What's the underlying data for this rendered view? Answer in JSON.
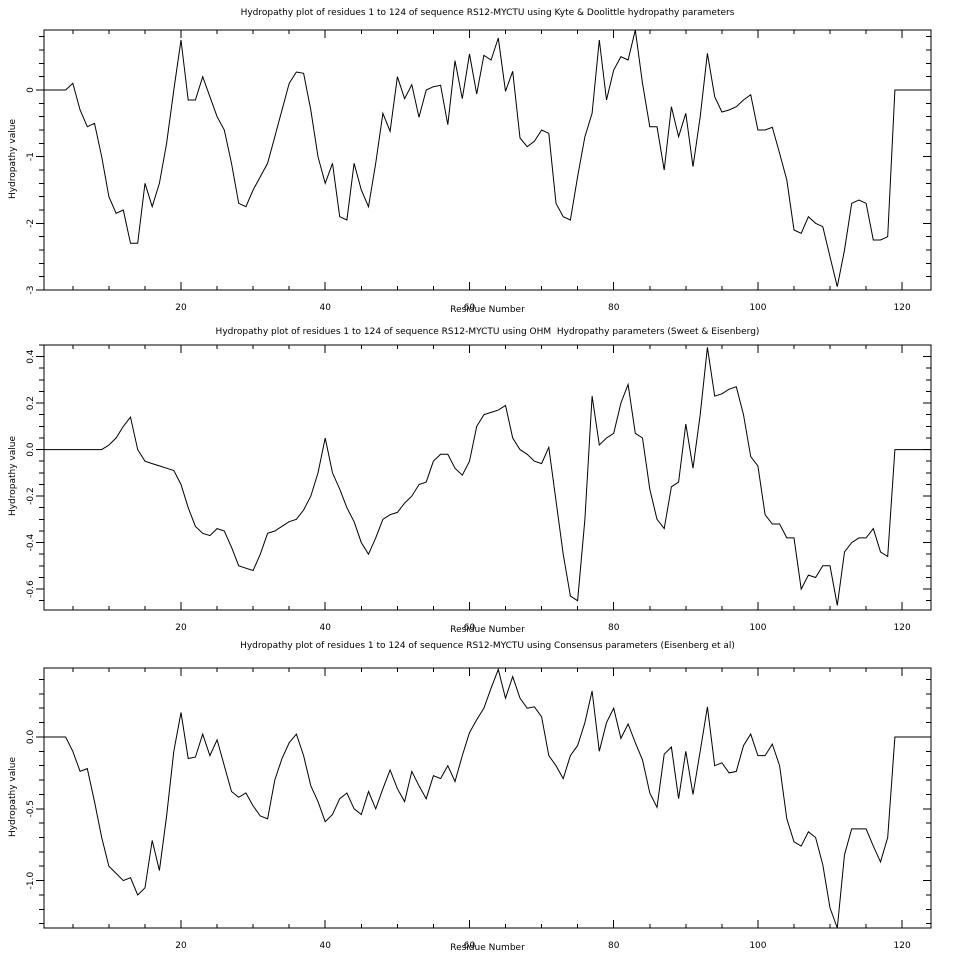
{
  "figure": {
    "background": "#ffffff",
    "line_color": "#000000",
    "text_color": "#000000"
  },
  "chart_data": [
    {
      "type": "line",
      "title": "Hydropathy plot of residues 1 to 124 of sequence RS12-MYCTU using Kyte & Doolittle hydropathy parameters",
      "xlabel": "Residue Number",
      "ylabel": "Hydropathy value",
      "xlim": [
        1,
        124
      ],
      "ylim": [
        -3.0,
        0.9
      ],
      "grid": false,
      "legend": null,
      "xticks_major": [
        20,
        40,
        60,
        80,
        100,
        120
      ],
      "xtick_labels": [
        "20",
        "40",
        "60",
        "80",
        "100",
        "120"
      ],
      "xtick_minor_step": 5,
      "yticks_major": [
        0,
        -1,
        -2,
        -3
      ],
      "ytick_labels": [
        "0",
        "-1",
        "-2",
        "-3"
      ],
      "ytick_minor_step": 0.2,
      "x_start": 1,
      "values": [
        0,
        0,
        0,
        0,
        0.1,
        -0.3,
        -0.55,
        -0.5,
        -1.0,
        -1.6,
        -1.85,
        -1.8,
        -2.3,
        -2.3,
        -1.4,
        -1.75,
        -1.4,
        -0.8,
        0.0,
        0.75,
        -0.15,
        -0.15,
        0.2,
        -0.1,
        -0.4,
        -0.6,
        -1.1,
        -1.7,
        -1.75,
        -1.5,
        -1.3,
        -1.1,
        -0.7,
        -0.3,
        0.1,
        0.27,
        0.25,
        -0.3,
        -1.0,
        -1.4,
        -1.1,
        -1.9,
        -1.95,
        -1.1,
        -1.5,
        -1.75,
        -1.1,
        -0.35,
        -0.62,
        0.2,
        -0.13,
        0.08,
        -0.41,
        0.0,
        0.05,
        0.07,
        -0.52,
        0.44,
        -0.13,
        0.54,
        -0.06,
        0.52,
        0.45,
        0.78,
        -0.02,
        0.28,
        -0.72,
        -0.85,
        -0.77,
        -0.6,
        -0.65,
        -1.7,
        -1.9,
        -1.95,
        -1.3,
        -0.7,
        -0.35,
        0.75,
        -0.15,
        0.3,
        0.5,
        0.45,
        0.9,
        0.1,
        -0.55,
        -0.55,
        -1.2,
        -0.25,
        -0.7,
        -0.35,
        -1.15,
        -0.4,
        0.55,
        -0.1,
        -0.33,
        -0.3,
        -0.25,
        -0.15,
        -0.07,
        -0.6,
        -0.6,
        -0.56,
        -0.95,
        -1.35,
        -2.1,
        -2.15,
        -1.9,
        -2.0,
        -2.05,
        -2.5,
        -2.95,
        -2.4,
        -1.7,
        -1.65,
        -1.7,
        -2.25,
        -2.25,
        -2.2,
        0,
        0,
        0,
        0,
        0,
        0
      ]
    },
    {
      "type": "line",
      "title": "Hydropathy plot of residues 1 to 124 of sequence RS12-MYCTU using OHM  Hydropathy parameters (Sweet & Eisenberg)",
      "xlabel": "Residue Number",
      "ylabel": "Hydropathy value",
      "xlim": [
        1,
        124
      ],
      "ylim": [
        -0.69,
        0.45
      ],
      "grid": false,
      "legend": null,
      "xticks_major": [
        20,
        40,
        60,
        80,
        100,
        120
      ],
      "xtick_labels": [
        "20",
        "40",
        "60",
        "80",
        "100",
        "120"
      ],
      "xtick_minor_step": 5,
      "yticks_major": [
        0.4,
        0.2,
        0.0,
        -0.2,
        -0.4,
        -0.6
      ],
      "ytick_labels": [
        "0.4",
        "0.2",
        "0.0",
        "-0.2",
        "-0.4",
        "-0.6"
      ],
      "ytick_minor_step": 0.05,
      "x_start": 1,
      "values": [
        0,
        0,
        0,
        0,
        0,
        0,
        0,
        0,
        0,
        0.02,
        0.05,
        0.1,
        0.14,
        0.0,
        -0.05,
        -0.06,
        -0.07,
        -0.08,
        -0.09,
        -0.15,
        -0.25,
        -0.33,
        -0.36,
        -0.37,
        -0.34,
        -0.35,
        -0.42,
        -0.5,
        -0.51,
        -0.52,
        -0.45,
        -0.36,
        -0.35,
        -0.33,
        -0.31,
        -0.3,
        -0.26,
        -0.2,
        -0.1,
        0.05,
        -0.1,
        -0.17,
        -0.25,
        -0.31,
        -0.4,
        -0.45,
        -0.38,
        -0.3,
        -0.28,
        -0.27,
        -0.23,
        -0.2,
        -0.15,
        -0.14,
        -0.05,
        -0.02,
        -0.02,
        -0.08,
        -0.11,
        -0.05,
        0.1,
        0.15,
        0.16,
        0.17,
        0.19,
        0.05,
        0.0,
        -0.02,
        -0.05,
        -0.06,
        0.01,
        -0.22,
        -0.45,
        -0.63,
        -0.65,
        -0.3,
        0.23,
        0.02,
        0.05,
        0.07,
        0.2,
        0.28,
        0.07,
        0.05,
        -0.17,
        -0.3,
        -0.34,
        -0.16,
        -0.14,
        0.11,
        -0.08,
        0.15,
        0.44,
        0.23,
        0.24,
        0.26,
        0.27,
        0.15,
        -0.03,
        -0.07,
        -0.28,
        -0.32,
        -0.32,
        -0.38,
        -0.38,
        -0.6,
        -0.54,
        -0.55,
        -0.5,
        -0.5,
        -0.67,
        -0.44,
        -0.4,
        -0.38,
        -0.38,
        -0.34,
        -0.44,
        -0.46,
        0,
        0,
        0,
        0,
        0,
        0
      ]
    },
    {
      "type": "line",
      "title": "Hydropathy plot of residues 1 to 124 of sequence RS12-MYCTU using Consensus parameters (Eisenberg et al)",
      "xlabel": "Residue Number",
      "ylabel": "Hydropathy value",
      "xlim": [
        1,
        124
      ],
      "ylim": [
        -1.33,
        0.48
      ],
      "grid": false,
      "legend": null,
      "xticks_major": [
        20,
        40,
        60,
        80,
        100,
        120
      ],
      "xtick_labels": [
        "20",
        "40",
        "60",
        "80",
        "100",
        "120"
      ],
      "xtick_minor_step": 5,
      "yticks_major": [
        0.0,
        -0.5,
        -1.0
      ],
      "ytick_labels": [
        "0.0",
        "-0.5",
        "-1.0"
      ],
      "ytick_minor_step": 0.1,
      "x_start": 1,
      "values": [
        0,
        0,
        0,
        0,
        -0.1,
        -0.24,
        -0.22,
        -0.45,
        -0.7,
        -0.9,
        -0.95,
        -1.0,
        -0.98,
        -1.1,
        -1.05,
        -0.72,
        -0.93,
        -0.55,
        -0.1,
        0.17,
        -0.15,
        -0.14,
        0.02,
        -0.13,
        -0.02,
        -0.2,
        -0.38,
        -0.42,
        -0.39,
        -0.48,
        -0.55,
        -0.57,
        -0.3,
        -0.15,
        -0.04,
        0.02,
        -0.13,
        -0.34,
        -0.45,
        -0.59,
        -0.54,
        -0.43,
        -0.39,
        -0.5,
        -0.54,
        -0.38,
        -0.5,
        -0.36,
        -0.23,
        -0.36,
        -0.45,
        -0.24,
        -0.34,
        -0.43,
        -0.27,
        -0.29,
        -0.2,
        -0.31,
        -0.13,
        0.03,
        0.12,
        0.2,
        0.34,
        0.47,
        0.27,
        0.42,
        0.27,
        0.2,
        0.21,
        0.14,
        -0.13,
        -0.2,
        -0.29,
        -0.13,
        -0.06,
        0.1,
        0.32,
        -0.1,
        0.1,
        0.2,
        -0.01,
        0.09,
        -0.04,
        -0.16,
        -0.39,
        -0.49,
        -0.12,
        -0.07,
        -0.43,
        -0.1,
        -0.4,
        -0.1,
        0.21,
        -0.2,
        -0.18,
        -0.25,
        -0.24,
        -0.06,
        0.02,
        -0.13,
        -0.13,
        -0.05,
        -0.2,
        -0.57,
        -0.73,
        -0.76,
        -0.66,
        -0.7,
        -0.89,
        -1.19,
        -1.33,
        -0.82,
        -0.64,
        -0.64,
        -0.64,
        -0.76,
        -0.87,
        -0.7,
        0,
        0,
        0,
        0,
        0,
        0
      ]
    }
  ]
}
